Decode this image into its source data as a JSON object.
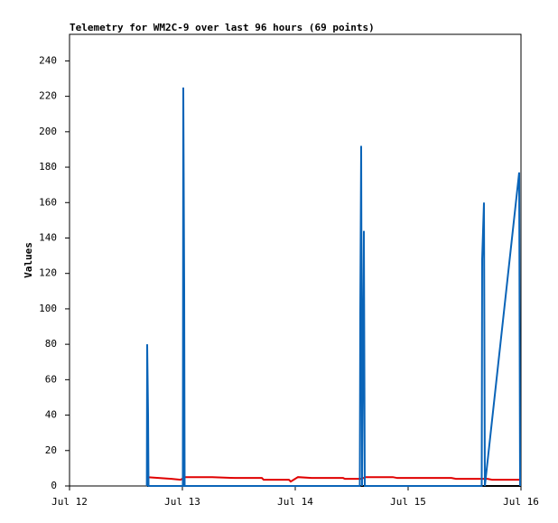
{
  "chart_data": {
    "type": "line",
    "title": "Telemetry for WM2C-9 over last 96 hours (69 points)",
    "y_label": "Values",
    "xlim": [
      12,
      16
    ],
    "xticks": [
      {
        "value": 12,
        "label": "Jul 12"
      },
      {
        "value": 13,
        "label": "Jul 13"
      },
      {
        "value": 14,
        "label": "Jul 14"
      },
      {
        "value": 15,
        "label": "Jul 15"
      },
      {
        "value": 16,
        "label": "Jul 16"
      }
    ],
    "ylim": [
      0,
      255
    ],
    "yticks": [
      0,
      20,
      40,
      60,
      80,
      100,
      120,
      140,
      160,
      180,
      200,
      220,
      240
    ],
    "series": [
      {
        "color": "#000000",
        "x": [
          12.688,
          16
        ],
        "values": [
          0,
          0
        ]
      },
      {
        "color": "#e00000",
        "x": [
          12.688,
          12.904,
          12.984,
          13.024,
          13.264,
          13.464,
          13.704,
          13.72,
          13.944,
          13.96,
          14.024,
          14.144,
          14.424,
          14.44,
          14.584,
          14.624,
          14.864,
          14.904,
          15.384,
          15.424,
          15.704,
          15.744,
          16
        ],
        "values": [
          5,
          4,
          3.5,
          5,
          5,
          4.5,
          4.5,
          3.5,
          3.5,
          2.5,
          5,
          4.5,
          4.5,
          4,
          4,
          5,
          5,
          4.5,
          4.5,
          4,
          4,
          3.5,
          3.5
        ]
      },
      {
        "color": "#0a64b8",
        "x": [
          12.685,
          12.688,
          12.696,
          12.7,
          13.004,
          13.008,
          13.016,
          13.02,
          14.572,
          14.576,
          14.584,
          14.592,
          14.6,
          14.608,
          14.616,
          15.652,
          15.656,
          15.672,
          15.68,
          15.984,
          15.992
        ],
        "values": [
          0,
          80,
          40,
          0,
          0,
          225,
          112,
          0,
          0,
          97,
          192,
          0,
          73,
          144,
          0,
          0,
          128,
          160,
          0,
          177,
          0
        ]
      }
    ]
  }
}
